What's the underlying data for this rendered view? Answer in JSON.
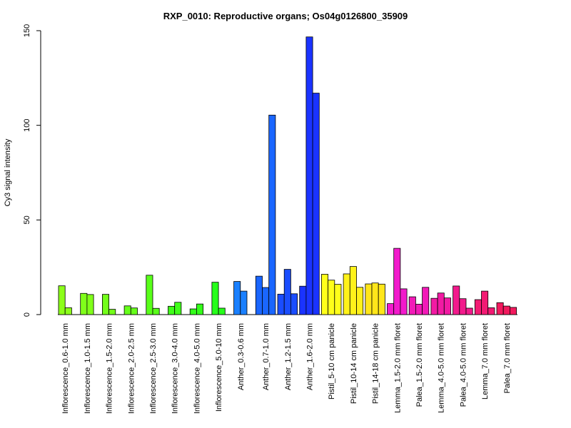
{
  "chart_data": {
    "type": "bar",
    "title": "RXP_0010: Reproductive organs; Os04g0126800_35909",
    "ylabel": "Cy3 signal intensity",
    "xlabel": "",
    "ylim": [
      0,
      150
    ],
    "yticks": [
      0,
      50,
      100,
      150
    ],
    "grid": false,
    "legend": "none",
    "groups": [
      {
        "label": "Inflorescence_0.6-1.0 mm",
        "values": [
          15.2,
          3.6
        ],
        "color": "#8cff1a"
      },
      {
        "label": "Inflorescence_1.0-1.5 mm",
        "values": [
          11.2,
          10.6
        ],
        "color": "#80ff1a"
      },
      {
        "label": "Inflorescence_1.5-2.0 mm",
        "values": [
          10.7,
          2.8
        ],
        "color": "#73ff1a"
      },
      {
        "label": "Inflorescence_2.0-2.5 mm",
        "values": [
          4.6,
          3.5
        ],
        "color": "#66ff1a"
      },
      {
        "label": "Inflorescence_2.5-3.0 mm",
        "values": [
          20.8,
          3.3
        ],
        "color": "#59ff1a"
      },
      {
        "label": "Inflorescence_3.0-4.0 mm",
        "values": [
          4.4,
          6.5
        ],
        "color": "#40ff1a"
      },
      {
        "label": "Inflorescence_4.0-5.0 mm",
        "values": [
          3.0,
          5.6
        ],
        "color": "#33ff1a"
      },
      {
        "label": "Inflorescence_5.0-10 mm",
        "values": [
          17.1,
          3.4
        ],
        "color": "#26ff1a"
      },
      {
        "label": "Anther_0.3-0.6 mm",
        "values": [
          17.5,
          12.4
        ],
        "color": "#1a80ff"
      },
      {
        "label": "Anther_0.7-1.0 mm",
        "values": [
          20.3,
          14.3,
          105.4
        ],
        "color": "#1a66ff"
      },
      {
        "label": "Anther_1.2-1.5 mm",
        "values": [
          10.8,
          23.9,
          11.0
        ],
        "color": "#1a4dff"
      },
      {
        "label": "Anther_1.6-2.0 mm",
        "values": [
          15.0,
          146.7,
          117.0
        ],
        "color": "#1a33ff"
      },
      {
        "label": "Pistil_5-10 cm panicle",
        "values": [
          21.3,
          18.2,
          16.0
        ],
        "color": "#ffff1a"
      },
      {
        "label": "Pistil_10-14 cm panicle",
        "values": [
          21.5,
          25.4,
          14.4
        ],
        "color": "#fff21a"
      },
      {
        "label": "Pistil_14-18 cm panicle",
        "values": [
          16.2,
          16.7,
          16.1
        ],
        "color": "#ffe61a"
      },
      {
        "label": "Lemma_1.5-2.0 mm floret",
        "values": [
          5.8,
          35.0,
          13.6
        ],
        "color": "#f21acc"
      },
      {
        "label": "Palea_1.5-2.0 mm floret",
        "values": [
          9.4,
          5.5,
          14.4
        ],
        "color": "#f21ab8"
      },
      {
        "label": "Lemma_4.0-5.0 mm floret",
        "values": [
          8.6,
          11.4,
          8.8
        ],
        "color": "#f21aa3"
      },
      {
        "label": "Palea_4.0-5.0 mm floret",
        "values": [
          15.1,
          8.4,
          3.4
        ],
        "color": "#f21a8c"
      },
      {
        "label": "Lemma_7.0 mm floret",
        "values": [
          7.9,
          12.4,
          3.6
        ],
        "color": "#f21a73"
      },
      {
        "label": "Palea_7.0 mm floret",
        "values": [
          6.3,
          4.5,
          3.8
        ],
        "color": "#f21a5e"
      }
    ]
  }
}
